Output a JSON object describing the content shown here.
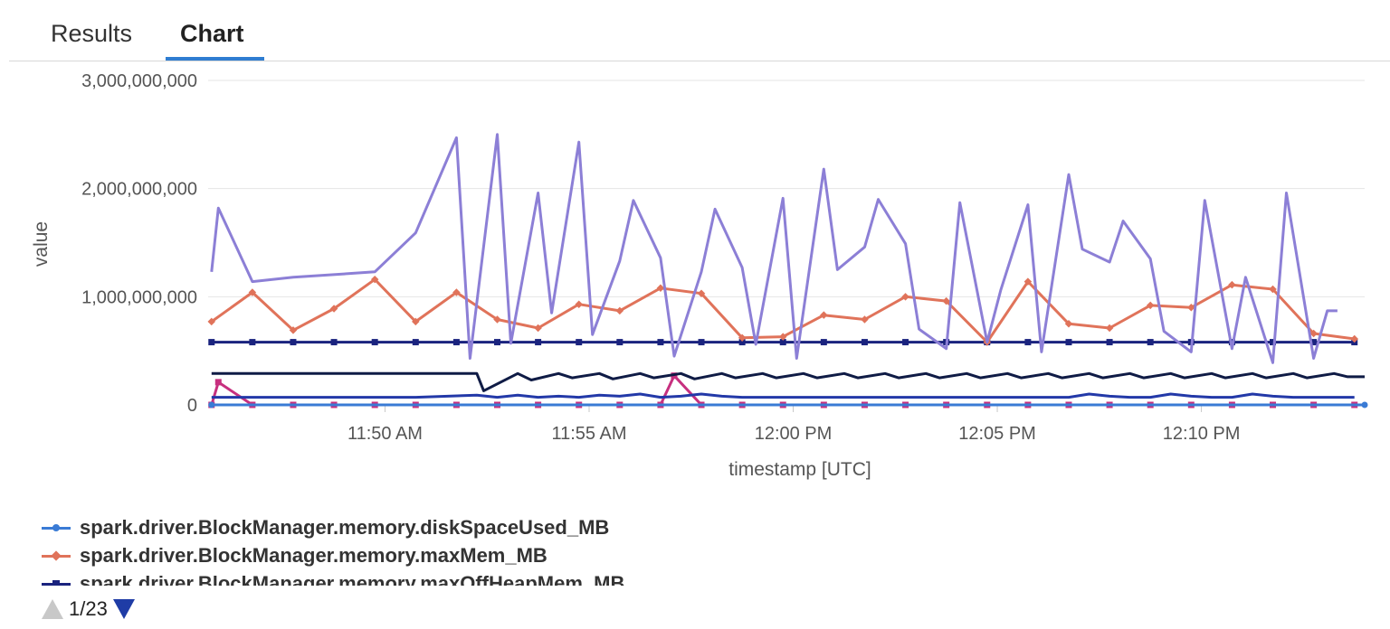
{
  "tabs": [
    {
      "label": "Results",
      "active": false
    },
    {
      "label": "Chart",
      "active": true
    }
  ],
  "pager": {
    "text": "1/23"
  },
  "colors": {
    "accent": "#2f7dd1",
    "grid": "#e4e4e4",
    "axis_text": "#555555"
  },
  "chart_data": {
    "type": "line",
    "xlabel": "timestamp [UTC]",
    "ylabel": "value",
    "ylim": [
      0,
      3000000000
    ],
    "yticks": [
      0,
      1000000000,
      2000000000,
      3000000000
    ],
    "ytick_labels": [
      "0",
      "1,000,000,000",
      "2,000,000,000",
      "3,000,000,000"
    ],
    "xlim": [
      "11:45:40",
      "12:14:00"
    ],
    "xticks": [
      "11:50:00",
      "11:55:00",
      "12:00:00",
      "12:05:00",
      "12:10:00"
    ],
    "xtick_labels": [
      "11:50 AM",
      "11:55 AM",
      "12:00 PM",
      "12:05 PM",
      "12:10 PM"
    ],
    "grid": true,
    "legend_position": "bottom",
    "series": [
      {
        "name": "spark.driver.BlockManager.memory.diskSpaceUsed_MB",
        "color": "#3a7bd5",
        "marker": "circle",
        "in_legend": true,
        "x": [
          "11:45:45",
          "12:14:00"
        ],
        "y": [
          0,
          0
        ]
      },
      {
        "name": "spark.driver.BlockManager.memory.maxMem_MB",
        "color": "#e0735a",
        "marker": "diamond",
        "in_legend": true,
        "x": [
          "11:45:45",
          "11:46:45",
          "11:47:45",
          "11:48:45",
          "11:49:45",
          "11:50:45",
          "11:51:45",
          "11:52:45",
          "11:53:45",
          "11:54:45",
          "11:55:45",
          "11:56:45",
          "11:57:45",
          "11:58:45",
          "11:59:45",
          "12:00:45",
          "12:01:45",
          "12:02:45",
          "12:03:45",
          "12:04:45",
          "12:05:45",
          "12:06:45",
          "12:07:45",
          "12:08:45",
          "12:09:45",
          "12:10:45",
          "12:11:45",
          "12:12:45",
          "12:13:45"
        ],
        "y": [
          770000000,
          1040000000,
          690000000,
          890000000,
          1160000000,
          770000000,
          1040000000,
          790000000,
          710000000,
          930000000,
          870000000,
          1080000000,
          1030000000,
          620000000,
          630000000,
          830000000,
          790000000,
          1000000000,
          960000000,
          580000000,
          1140000000,
          750000000,
          710000000,
          920000000,
          900000000,
          1110000000,
          1070000000,
          660000000,
          610000000
        ]
      },
      {
        "name": "spark.driver.BlockManager.memory.maxOffHeapMem_MB",
        "color": "#1a237e",
        "marker": "square",
        "in_legend": true,
        "x": [
          "11:45:45",
          "11:46:45",
          "11:47:45",
          "11:48:45",
          "11:49:45",
          "11:50:45",
          "11:51:45",
          "11:52:45",
          "11:53:45",
          "11:54:45",
          "11:55:45",
          "11:56:45",
          "11:57:45",
          "11:58:45",
          "11:59:45",
          "12:00:45",
          "12:01:45",
          "12:02:45",
          "12:03:45",
          "12:04:45",
          "12:05:45",
          "12:06:45",
          "12:07:45",
          "12:08:45",
          "12:09:45",
          "12:10:45",
          "12:11:45",
          "12:12:45",
          "12:13:45"
        ],
        "y": [
          580000000,
          580000000,
          580000000,
          580000000,
          580000000,
          580000000,
          580000000,
          580000000,
          580000000,
          580000000,
          580000000,
          580000000,
          580000000,
          580000000,
          580000000,
          580000000,
          580000000,
          580000000,
          580000000,
          580000000,
          580000000,
          580000000,
          580000000,
          580000000,
          580000000,
          580000000,
          580000000,
          580000000,
          580000000
        ]
      },
      {
        "name": "",
        "color": "#8c7fd6",
        "marker": "none",
        "in_legend": false,
        "x": [
          "11:45:45",
          "11:45:55",
          "11:46:45",
          "11:47:45",
          "11:49:45",
          "11:50:45",
          "11:51:45",
          "11:52:05",
          "11:52:45",
          "11:53:05",
          "11:53:45",
          "11:54:05",
          "11:54:45",
          "11:55:05",
          "11:55:45",
          "11:56:05",
          "11:56:45",
          "11:57:05",
          "11:57:45",
          "11:58:05",
          "11:58:45",
          "11:59:05",
          "11:59:45",
          "12:00:05",
          "12:00:45",
          "12:01:05",
          "12:01:45",
          "12:02:05",
          "12:02:45",
          "12:03:05",
          "12:03:45",
          "12:04:05",
          "12:04:45",
          "12:05:05",
          "12:05:45",
          "12:06:05",
          "12:06:45",
          "12:07:05",
          "12:07:45",
          "12:08:05",
          "12:08:45",
          "12:09:05",
          "12:09:45",
          "12:10:05",
          "12:10:45",
          "12:11:05",
          "12:11:45",
          "12:12:05",
          "12:12:45",
          "12:13:05",
          "12:13:20"
        ],
        "y": [
          1230000000,
          1820000000,
          1140000000,
          1180000000,
          1230000000,
          1590000000,
          2470000000,
          430000000,
          2500000000,
          570000000,
          1960000000,
          850000000,
          2430000000,
          650000000,
          1330000000,
          1890000000,
          1360000000,
          450000000,
          1230000000,
          1810000000,
          1270000000,
          560000000,
          1910000000,
          430000000,
          2180000000,
          1250000000,
          1460000000,
          1900000000,
          1490000000,
          700000000,
          520000000,
          1870000000,
          580000000,
          1060000000,
          1850000000,
          490000000,
          2130000000,
          1440000000,
          1320000000,
          1700000000,
          1350000000,
          680000000,
          490000000,
          1890000000,
          520000000,
          1180000000,
          390000000,
          1960000000,
          430000000,
          870000000,
          870000000
        ]
      },
      {
        "name": "",
        "color": "#0f1b45",
        "marker": "none",
        "in_legend": false,
        "x": [
          "11:45:45",
          "11:46:15",
          "11:52:15",
          "11:52:25",
          "11:53:15",
          "11:53:35",
          "11:54:15",
          "11:54:35",
          "11:55:15",
          "11:55:35",
          "11:56:15",
          "11:56:35",
          "11:57:15",
          "11:57:35",
          "11:58:15",
          "11:58:35",
          "11:59:15",
          "11:59:35",
          "12:00:15",
          "12:00:35",
          "12:01:15",
          "12:01:35",
          "12:02:15",
          "12:02:35",
          "12:03:15",
          "12:03:35",
          "12:04:15",
          "12:04:35",
          "12:05:15",
          "12:05:35",
          "12:06:15",
          "12:06:35",
          "12:07:15",
          "12:07:35",
          "12:08:15",
          "12:08:35",
          "12:09:15",
          "12:09:35",
          "12:10:15",
          "12:10:35",
          "12:11:15",
          "12:11:35",
          "12:12:15",
          "12:12:35",
          "12:13:15",
          "12:13:35",
          "12:14:00"
        ],
        "y": [
          290000000,
          290000000,
          290000000,
          130000000,
          290000000,
          230000000,
          290000000,
          250000000,
          290000000,
          240000000,
          290000000,
          250000000,
          290000000,
          240000000,
          290000000,
          250000000,
          290000000,
          250000000,
          290000000,
          250000000,
          290000000,
          250000000,
          290000000,
          250000000,
          290000000,
          250000000,
          290000000,
          250000000,
          290000000,
          250000000,
          290000000,
          250000000,
          290000000,
          250000000,
          290000000,
          250000000,
          290000000,
          250000000,
          290000000,
          250000000,
          290000000,
          250000000,
          290000000,
          250000000,
          290000000,
          260000000,
          260000000
        ]
      },
      {
        "name": "",
        "color": "#2339a8",
        "marker": "none",
        "in_legend": false,
        "x": [
          "11:45:45",
          "11:50:45",
          "11:52:15",
          "11:52:45",
          "11:53:15",
          "11:53:45",
          "11:54:15",
          "11:54:45",
          "11:55:15",
          "11:55:45",
          "11:56:15",
          "11:56:45",
          "11:57:15",
          "11:57:45",
          "11:58:15",
          "11:58:45",
          "11:59:15",
          "12:06:45",
          "12:07:15",
          "12:07:45",
          "12:08:15",
          "12:08:45",
          "12:09:15",
          "12:09:45",
          "12:10:15",
          "12:10:45",
          "12:11:15",
          "12:11:45",
          "12:12:15",
          "12:13:45"
        ],
        "y": [
          70000000,
          70000000,
          90000000,
          70000000,
          90000000,
          70000000,
          80000000,
          70000000,
          90000000,
          80000000,
          100000000,
          70000000,
          80000000,
          100000000,
          80000000,
          70000000,
          70000000,
          70000000,
          100000000,
          80000000,
          70000000,
          70000000,
          100000000,
          80000000,
          70000000,
          70000000,
          100000000,
          80000000,
          70000000,
          70000000
        ]
      },
      {
        "name": "",
        "color": "#c7307f",
        "marker": "square",
        "in_legend": false,
        "x": [
          "11:45:45",
          "11:45:55",
          "11:46:45",
          "11:47:45",
          "11:48:45",
          "11:49:45",
          "11:50:45",
          "11:51:45",
          "11:52:45",
          "11:53:45",
          "11:54:45",
          "11:55:45",
          "11:56:45",
          "11:57:05",
          "11:57:45",
          "11:58:45",
          "11:59:45",
          "12:00:45",
          "12:01:45",
          "12:02:45",
          "12:03:45",
          "12:04:45",
          "12:05:45",
          "12:06:45",
          "12:07:45",
          "12:08:45",
          "12:09:45",
          "12:10:45",
          "12:11:45",
          "12:12:45",
          "12:13:45"
        ],
        "y": [
          0,
          210000000,
          0,
          0,
          0,
          0,
          0,
          0,
          0,
          0,
          0,
          0,
          0,
          270000000,
          0,
          0,
          0,
          0,
          0,
          0,
          0,
          0,
          0,
          0,
          0,
          0,
          0,
          0,
          0,
          0,
          0
        ]
      }
    ]
  }
}
